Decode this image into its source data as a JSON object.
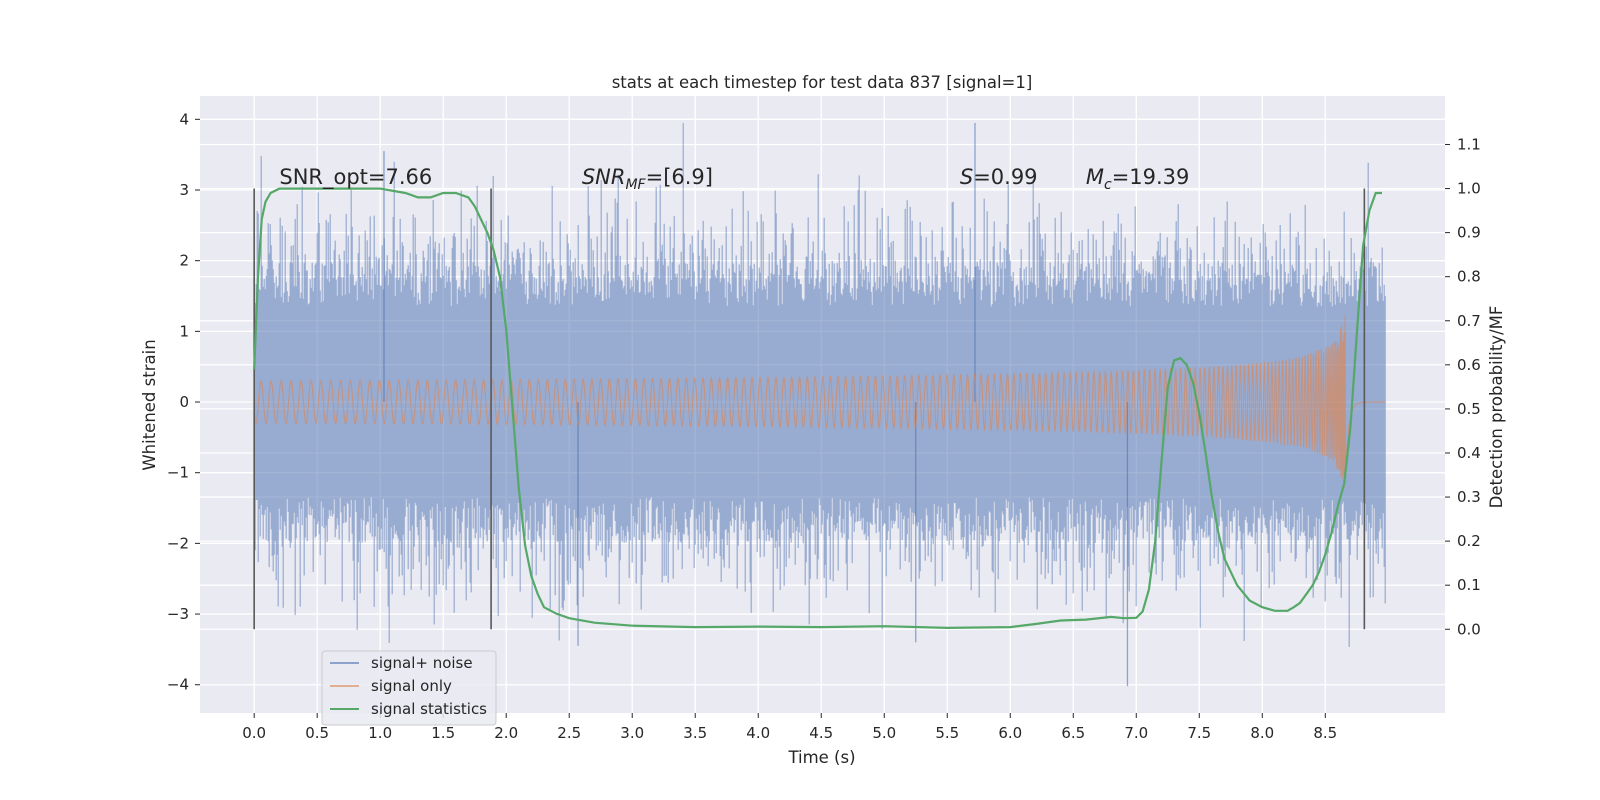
{
  "chart_data": {
    "type": "line",
    "title": "stats at each timestep for test data 837 [signal=1]",
    "xlabel": "Time (s)",
    "ylabel": "Whitened strain",
    "y2label": "Detection probability/MF",
    "xlim": [
      -0.43,
      9.45
    ],
    "ylim": [
      -4.4,
      4.33
    ],
    "y2lim": [
      -0.19,
      1.21
    ],
    "xticks": [
      "0.0",
      "0.5",
      "1.0",
      "1.5",
      "2.0",
      "2.5",
      "3.0",
      "3.5",
      "4.0",
      "4.5",
      "5.0",
      "5.5",
      "6.0",
      "6.5",
      "7.0",
      "7.5",
      "8.0",
      "8.5"
    ],
    "yticks": [
      "4",
      "3",
      "2",
      "1",
      "0",
      "−1",
      "−2",
      "−3",
      "−4"
    ],
    "y2ticks": [
      "1.1",
      "1.0",
      "0.9",
      "0.8",
      "0.7",
      "0.6",
      "0.5",
      "0.4",
      "0.3",
      "0.2",
      "0.1",
      "0.0"
    ],
    "grid": true,
    "legend": "lower-left",
    "colors": {
      "noise": "#4c72b0",
      "signal": "#dd8452",
      "stats": "#55a868",
      "marker": "#595959",
      "background": "#eaeaf2"
    },
    "annotations": {
      "snr_opt": {
        "label": "SNR_opt=7.66",
        "x": 0.2
      },
      "snr_mf": {
        "pre": "SNR",
        "sub": "MF",
        "post": "=[6.9]",
        "x": 2.6
      },
      "s": {
        "pre": "S",
        "post": "=0.99",
        "x": 5.6
      },
      "mc": {
        "pre": "M",
        "sub": "c",
        "post": "=19.39",
        "x": 6.6
      }
    },
    "vlines": [
      0.0,
      1.88,
      8.81
    ],
    "series": [
      {
        "name": "signal+ noise",
        "kind": "noise",
        "x_start": 0.0,
        "x_end": 8.98,
        "typical_amplitude": 1.8,
        "peak_max": 3.95,
        "peak_min": -4.02
      },
      {
        "name": "signal only",
        "kind": "chirp",
        "x_start": 0.0,
        "x_end": 8.98,
        "merger_time": 8.66,
        "peak_amplitude": 1.6
      },
      {
        "name": "signal statistics",
        "kind": "stats",
        "axis": "right",
        "x": [
          0.0,
          0.03,
          0.06,
          0.09,
          0.13,
          0.2,
          0.3,
          0.5,
          0.8,
          1.0,
          1.2,
          1.3,
          1.4,
          1.5,
          1.6,
          1.7,
          1.75,
          1.8,
          1.85,
          1.9,
          1.95,
          2.0,
          2.05,
          2.1,
          2.15,
          2.2,
          2.25,
          2.3,
          2.4,
          2.5,
          2.7,
          3.0,
          3.5,
          4.0,
          4.5,
          5.0,
          5.5,
          6.0,
          6.2,
          6.4,
          6.6,
          6.8,
          6.9,
          7.0,
          7.05,
          7.1,
          7.15,
          7.2,
          7.25,
          7.3,
          7.35,
          7.4,
          7.45,
          7.5,
          7.55,
          7.6,
          7.65,
          7.7,
          7.8,
          7.9,
          8.0,
          8.1,
          8.2,
          8.25,
          8.3,
          8.35,
          8.4,
          8.45,
          8.5,
          8.55,
          8.6,
          8.65,
          8.7,
          8.75,
          8.8,
          8.85,
          8.9,
          8.95
        ],
        "values": [
          0.59,
          0.8,
          0.93,
          0.97,
          0.99,
          1.0,
          1.0,
          1.0,
          1.0,
          1.0,
          0.99,
          0.98,
          0.98,
          0.99,
          0.99,
          0.98,
          0.96,
          0.93,
          0.9,
          0.86,
          0.8,
          0.68,
          0.5,
          0.32,
          0.19,
          0.12,
          0.08,
          0.05,
          0.035,
          0.025,
          0.015,
          0.008,
          0.005,
          0.006,
          0.005,
          0.007,
          0.003,
          0.005,
          0.012,
          0.02,
          0.022,
          0.028,
          0.025,
          0.026,
          0.04,
          0.09,
          0.2,
          0.38,
          0.55,
          0.61,
          0.615,
          0.6,
          0.56,
          0.49,
          0.4,
          0.3,
          0.22,
          0.16,
          0.1,
          0.065,
          0.05,
          0.042,
          0.042,
          0.05,
          0.06,
          0.08,
          0.1,
          0.13,
          0.17,
          0.22,
          0.28,
          0.33,
          0.46,
          0.67,
          0.87,
          0.95,
          0.99,
          0.99
        ]
      }
    ]
  }
}
